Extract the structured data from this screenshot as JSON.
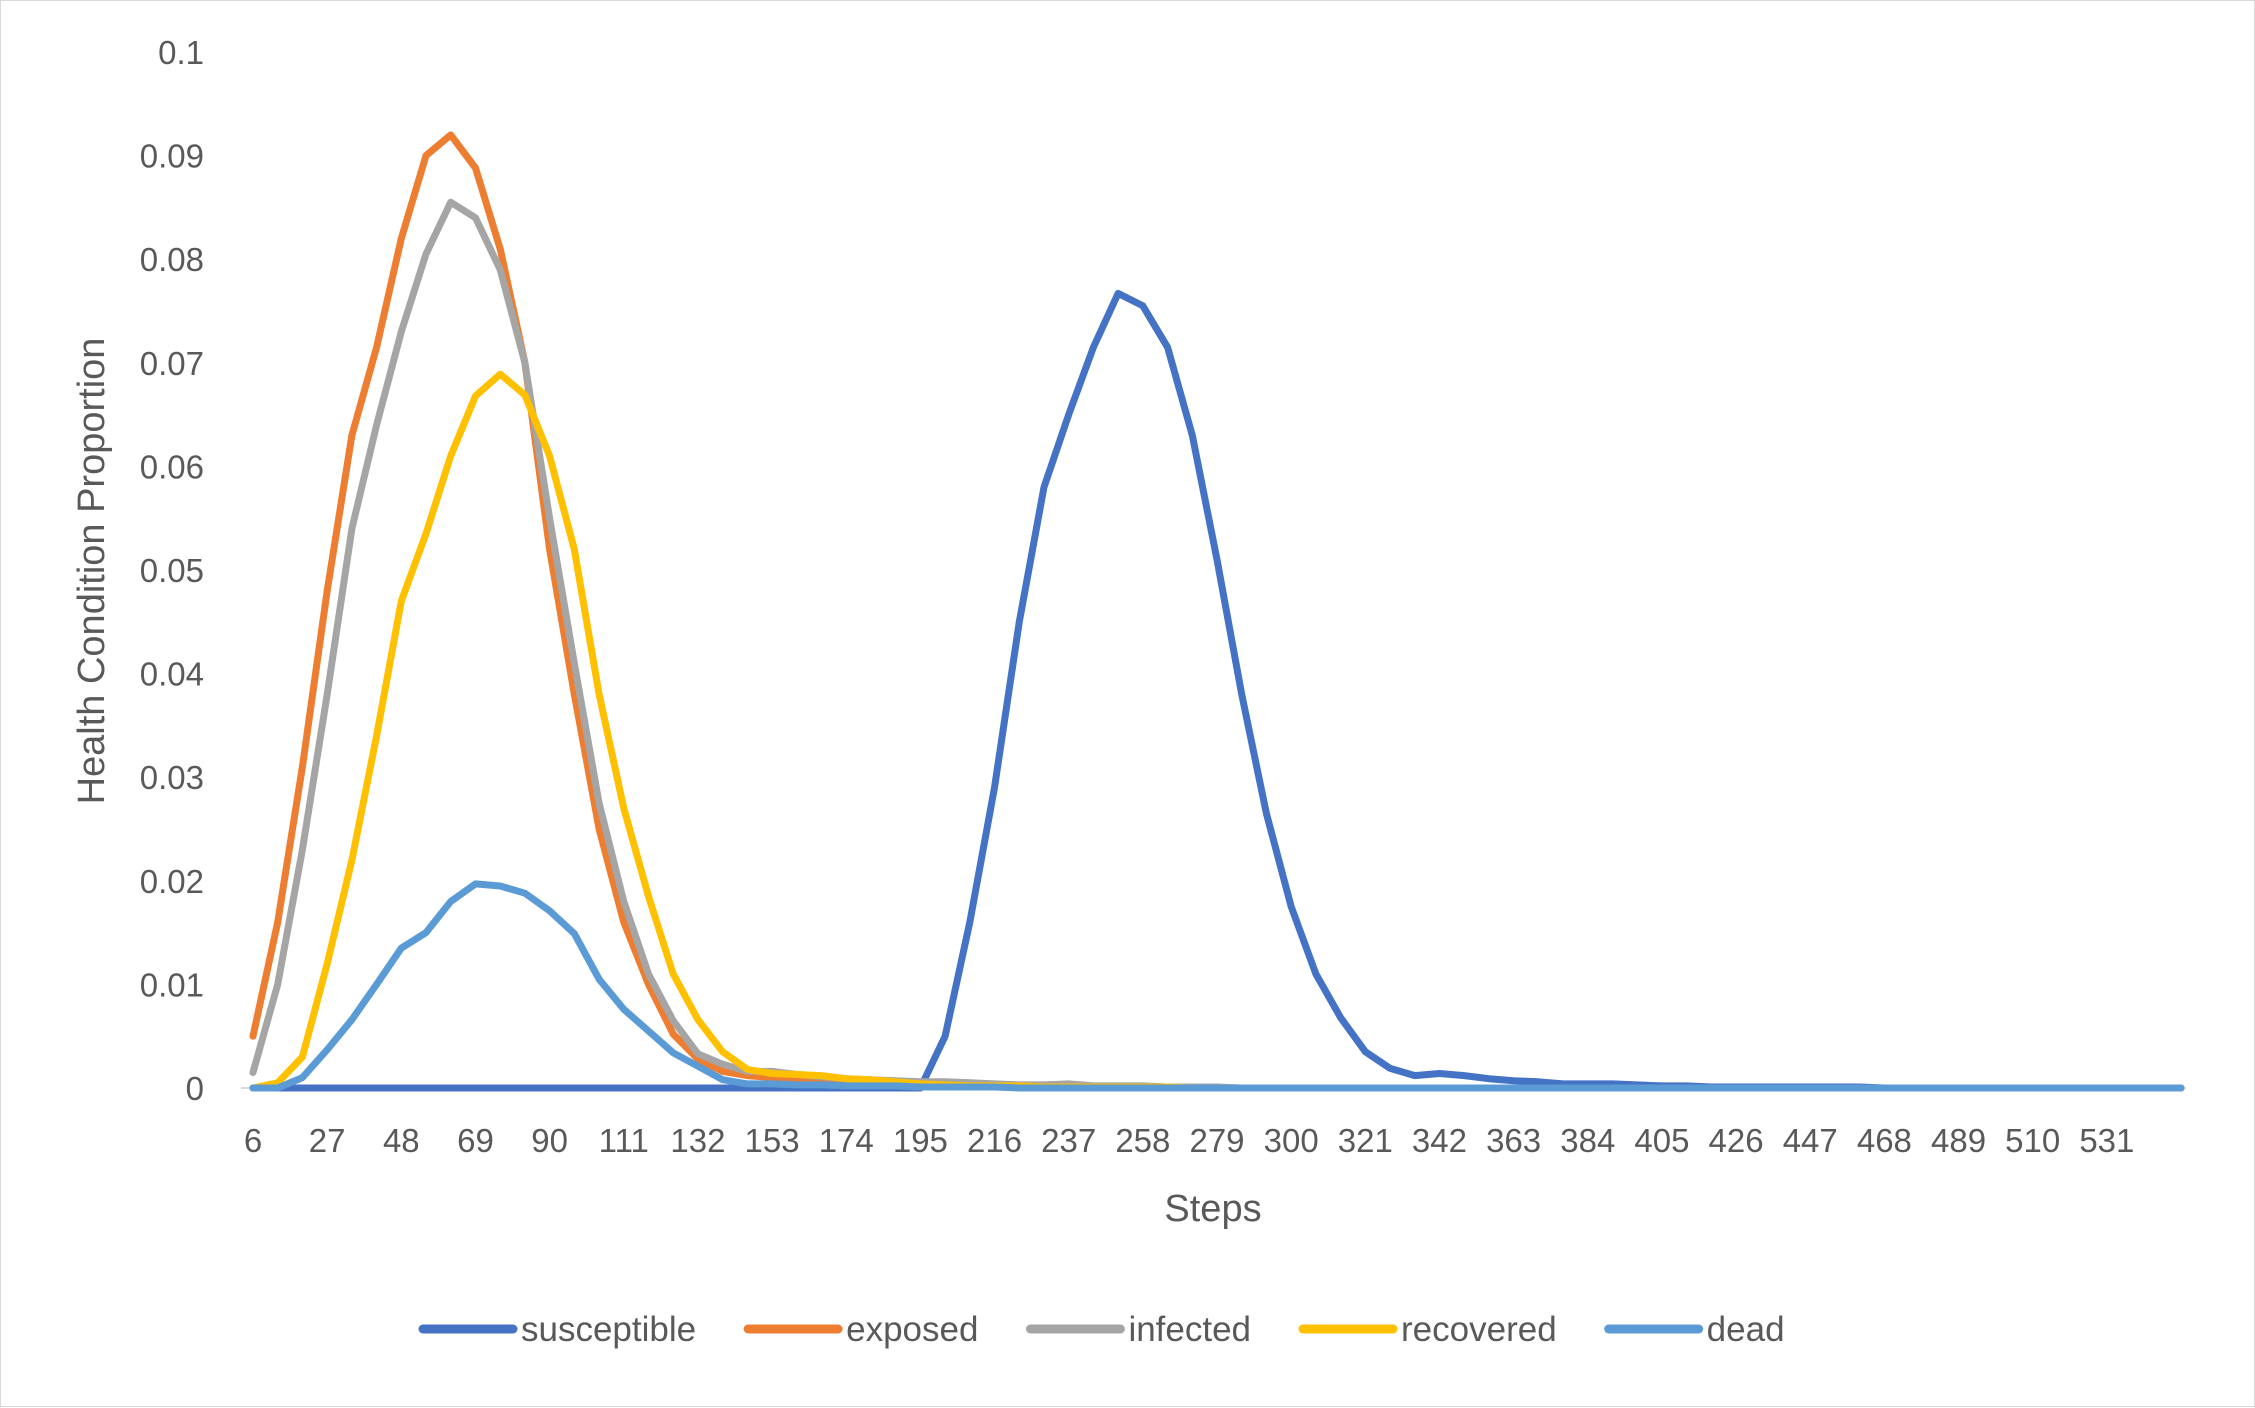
{
  "chart_data": {
    "type": "line",
    "title": "",
    "xlabel": "Steps",
    "ylabel": "Health Condition Proportion",
    "ylim": [
      0,
      0.1
    ],
    "y_ticks": [
      "0",
      "0.01",
      "0.02",
      "0.03",
      "0.04",
      "0.05",
      "0.06",
      "0.07",
      "0.08",
      "0.09",
      "0.1"
    ],
    "x_tick_labels": [
      "6",
      "27",
      "48",
      "69",
      "90",
      "111",
      "132",
      "153",
      "174",
      "195",
      "216",
      "237",
      "258",
      "279",
      "300",
      "321",
      "342",
      "363",
      "384",
      "405",
      "426",
      "447",
      "468",
      "489",
      "510",
      "531"
    ],
    "xlim": [
      6,
      552
    ],
    "x": [
      6,
      13,
      20,
      27,
      34,
      41,
      48,
      55,
      62,
      69,
      76,
      83,
      90,
      97,
      104,
      111,
      118,
      125,
      132,
      139,
      146,
      153,
      160,
      167,
      174,
      181,
      188,
      195,
      202,
      209,
      216,
      223,
      230,
      237,
      244,
      251,
      258,
      265,
      272,
      279,
      286,
      293,
      300,
      307,
      314,
      321,
      328,
      335,
      342,
      349,
      356,
      363,
      370,
      377,
      384,
      391,
      398,
      405,
      412,
      419,
      426,
      433,
      440,
      447,
      454,
      461,
      468,
      475,
      482,
      489,
      496,
      503,
      510,
      517,
      524,
      531,
      538,
      545,
      552
    ],
    "legend_position": "bottom",
    "grid": false,
    "series": [
      {
        "name": "susceptible",
        "color": "#4472c4",
        "values": [
          0,
          0,
          0,
          0,
          0,
          0,
          0,
          0,
          0,
          0,
          0,
          0,
          0,
          0,
          0,
          0,
          0,
          0,
          0,
          0,
          0,
          0,
          0,
          0,
          0,
          0,
          0,
          0,
          0.005,
          0.016,
          0.029,
          0.045,
          0.058,
          0.065,
          0.0715,
          0.0767,
          0.0755,
          0.0715,
          0.063,
          0.051,
          0.038,
          0.0265,
          0.0175,
          0.011,
          0.0068,
          0.0035,
          0.0019,
          0.0012,
          0.0014,
          0.0012,
          0.0009,
          0.0007,
          0.0006,
          0.0004,
          0.0004,
          0.0004,
          0.0003,
          0.0002,
          0.0002,
          0.0001,
          0.0001,
          0.0001,
          0.0001,
          0.0001,
          0.0001,
          0.0001,
          0,
          0,
          0,
          0,
          0,
          0,
          0,
          0,
          0,
          0,
          0,
          0,
          0
        ]
      },
      {
        "name": "exposed",
        "color": "#ed7d31",
        "values": [
          0.005,
          0.016,
          0.031,
          0.048,
          0.063,
          0.0715,
          0.082,
          0.09,
          0.092,
          0.0888,
          0.081,
          0.07,
          0.052,
          0.038,
          0.025,
          0.016,
          0.01,
          0.0052,
          0.0028,
          0.0016,
          0.0012,
          0.001,
          0.0008,
          0.0006,
          0.0005,
          0.0004,
          0.0003,
          0.0002,
          0.0002,
          0.0001,
          0.0001,
          0.0001,
          0.0001,
          0.0001,
          0,
          0,
          0,
          0,
          0,
          0,
          0,
          0,
          0,
          0,
          0,
          0,
          0,
          0,
          0,
          0,
          0,
          0,
          0,
          0,
          0,
          0,
          0,
          0,
          0,
          0,
          0,
          0,
          0,
          0,
          0,
          0,
          0,
          0,
          0,
          0,
          0,
          0,
          0,
          0,
          0,
          0,
          0,
          0,
          0
        ]
      },
      {
        "name": "infected",
        "color": "#a5a5a5",
        "values": [
          0.0015,
          0.01,
          0.023,
          0.038,
          0.054,
          0.064,
          0.073,
          0.0805,
          0.0855,
          0.084,
          0.079,
          0.07,
          0.055,
          0.041,
          0.0275,
          0.018,
          0.011,
          0.0065,
          0.0033,
          0.0023,
          0.0016,
          0.0016,
          0.0013,
          0.0011,
          0.0009,
          0.0008,
          0.0007,
          0.0006,
          0.0006,
          0.0005,
          0.0004,
          0.0003,
          0.0003,
          0.0004,
          0.0002,
          0.0002,
          0.0002,
          0.0001,
          0.0001,
          0.0001,
          0,
          0,
          0,
          0,
          0,
          0,
          0,
          0,
          0,
          0,
          0,
          0,
          0,
          0,
          0,
          0,
          0,
          0,
          0,
          0,
          0,
          0,
          0,
          0,
          0,
          0,
          0,
          0,
          0,
          0,
          0,
          0,
          0,
          0,
          0,
          0,
          0,
          0,
          0
        ]
      },
      {
        "name": "recovered",
        "color": "#ffc000",
        "values": [
          0,
          0.0005,
          0.003,
          0.012,
          0.022,
          0.034,
          0.047,
          0.0535,
          0.061,
          0.0668,
          0.0689,
          0.0669,
          0.061,
          0.052,
          0.038,
          0.027,
          0.0185,
          0.011,
          0.0066,
          0.0035,
          0.0018,
          0.0014,
          0.0013,
          0.0012,
          0.0009,
          0.0008,
          0.0006,
          0.0004,
          0.0003,
          0.0002,
          0.0002,
          0.0002,
          0.0001,
          0.0001,
          0.0001,
          0.0001,
          0.0001,
          0.0001,
          0,
          0,
          0,
          0,
          0,
          0,
          0,
          0,
          0,
          0,
          0,
          0,
          0,
          0,
          0,
          0,
          0,
          0,
          0,
          0,
          0,
          0,
          0,
          0,
          0,
          0,
          0,
          0,
          0,
          0,
          0,
          0,
          0,
          0,
          0,
          0,
          0,
          0,
          0,
          0,
          0
        ]
      },
      {
        "name": "dead",
        "color": "#5b9bd5",
        "values": [
          0,
          0,
          0.001,
          0.0037,
          0.0066,
          0.01,
          0.0135,
          0.015,
          0.018,
          0.0197,
          0.0195,
          0.0188,
          0.0171,
          0.0149,
          0.0105,
          0.0076,
          0.0055,
          0.0034,
          0.0021,
          0.0008,
          0.0004,
          0.0004,
          0.0003,
          0.0003,
          0.0002,
          0.0002,
          0.0002,
          0.0001,
          0.0001,
          0.0001,
          0.0001,
          0,
          0,
          0,
          0,
          0,
          0,
          0,
          0,
          0,
          0,
          0,
          0,
          0,
          0,
          0,
          0,
          0,
          0,
          0,
          0,
          0,
          0,
          0,
          0,
          0,
          0,
          0,
          0,
          0,
          0,
          0,
          0,
          0,
          0,
          0,
          0,
          0,
          0,
          0,
          0,
          0,
          0,
          0,
          0,
          0,
          0,
          0,
          0
        ]
      }
    ]
  }
}
